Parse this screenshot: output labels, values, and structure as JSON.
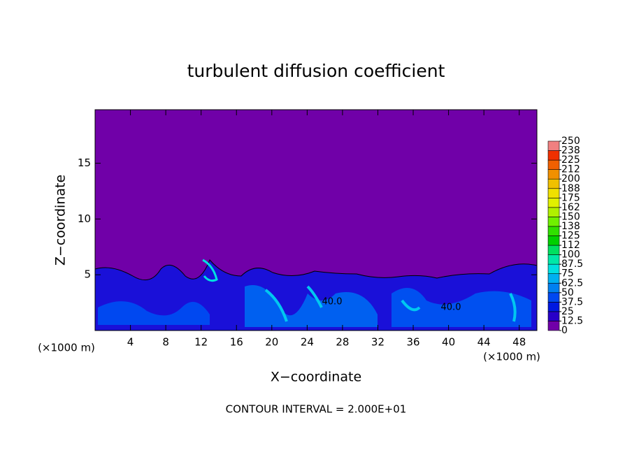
{
  "chart_data": {
    "type": "contour",
    "title": "turbulent diffusion coefficient",
    "x_label": "X−coordinate",
    "y_label": "Z−coordinate",
    "x_unit_labels": [
      "(×1000 m)",
      "(×1000 m)"
    ],
    "xlim": [
      0,
      50
    ],
    "ylim": [
      0,
      19.8
    ],
    "xticks": [
      4,
      8,
      12,
      16,
      20,
      24,
      28,
      32,
      36,
      40,
      44,
      48
    ],
    "yticks": [
      5,
      10,
      15
    ],
    "colorbar": {
      "levels": [
        0,
        12.5,
        25,
        37.5,
        50,
        62.5,
        75,
        87.5,
        100,
        {
          "value": 112.5,
          "label": "112"
        },
        125,
        {
          "value": 137.5,
          "label": "138"
        },
        150,
        {
          "value": 162.5,
          "label": "162"
        },
        175,
        {
          "value": 187.5,
          "label": "188"
        },
        200,
        {
          "value": 212.5,
          "label": "212"
        },
        225,
        {
          "value": 237.5,
          "label": "238"
        },
        250
      ],
      "colors": [
        "#7000a8",
        "#2800c8",
        "#0018e0",
        "#0048f0",
        "#0080f0",
        "#00b0f0",
        "#00e0e0",
        "#00e8a8",
        "#00e060",
        "#00d000",
        "#30e000",
        "#70f000",
        "#b0f000",
        "#e0f000",
        "#f0e000",
        "#f0c000",
        "#f09000",
        "#f06000",
        "#f03000",
        "#f08080"
      ]
    },
    "annotations": [
      "40.0",
      "40.0"
    ],
    "footnote": "CONTOUR INTERVAL = 2.000E+01"
  }
}
